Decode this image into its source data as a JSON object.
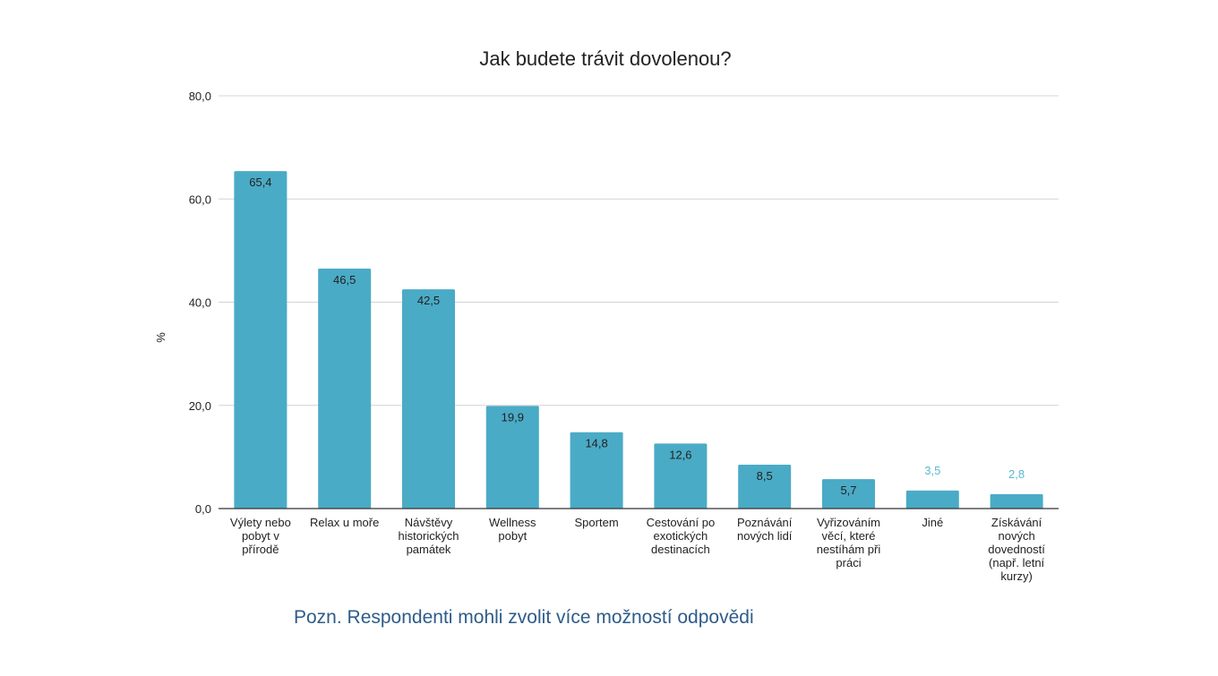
{
  "chart_data": {
    "type": "bar",
    "title": "Jak budete trávit dovolenou?",
    "ylabel": "%",
    "xlabel": "",
    "ylim": [
      0,
      80
    ],
    "yticks": [
      "0,0",
      "20,0",
      "40,0",
      "60,0",
      "80,0"
    ],
    "ytick_values": [
      0,
      20,
      40,
      60,
      80
    ],
    "grid": true,
    "categories": [
      [
        "Výlety nebo",
        "pobyt v",
        "přírodě"
      ],
      [
        "Relax u moře"
      ],
      [
        "Návštěvy",
        "historických",
        "památek"
      ],
      [
        "Wellness",
        "pobyt"
      ],
      [
        "Sportem"
      ],
      [
        "Cestování po",
        "exotických",
        "destinacích"
      ],
      [
        "Poznávání",
        "nových lidí"
      ],
      [
        "Vyřizováním",
        "věcí, které",
        "nestíhám při",
        "práci"
      ],
      [
        "Jiné"
      ],
      [
        "Získávání",
        "nových",
        "dovedností",
        "(např. letní",
        "kurzy)"
      ]
    ],
    "values": [
      65.4,
      46.5,
      42.5,
      19.9,
      14.8,
      12.6,
      8.5,
      5.7,
      3.5,
      2.8
    ],
    "value_labels": [
      "65,4",
      "46,5",
      "42,5",
      "19,9",
      "14,8",
      "12,6",
      "8,5",
      "5,7",
      "3,5",
      "2,8"
    ],
    "bar_color": "#4aabc6",
    "label_color": "#222222",
    "outside_label_color": "#5bb8d3",
    "grid_color": "#d4d4d4",
    "axis_color": "#333333"
  },
  "footnote": "Pozn. Respondenti mohli zvolit více možností odpovědi"
}
